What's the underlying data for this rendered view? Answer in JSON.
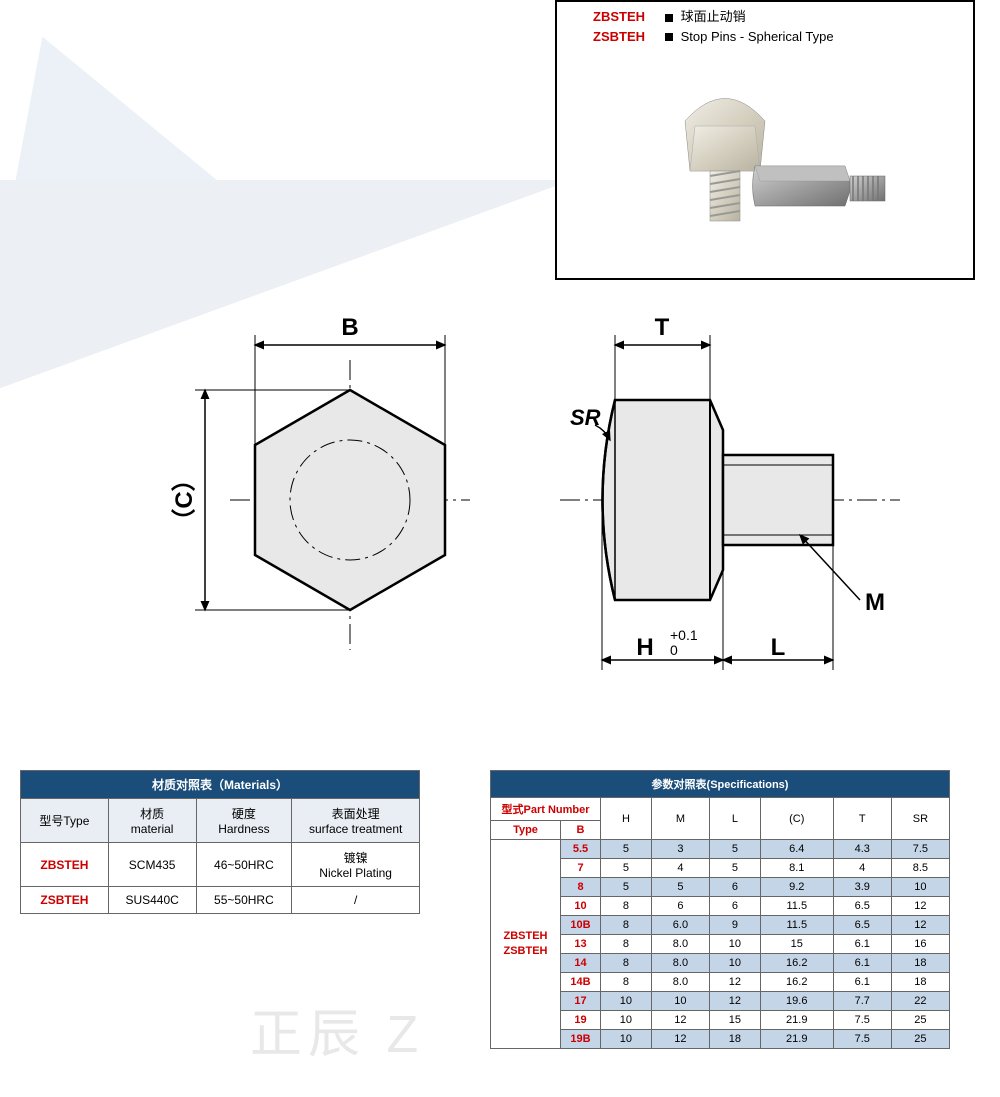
{
  "product": {
    "code1": "ZBSTEH",
    "code2": "ZSBTEH",
    "name_cn": "球面止动销",
    "name_en": "Stop Pins - Spherical Type"
  },
  "diagram": {
    "labels": {
      "B": "B",
      "C": "（C）",
      "T": "T",
      "SR": "SR",
      "M": "M",
      "L": "L",
      "H": "H",
      "H_tol_upper": "+0.1",
      "H_tol_lower": "0"
    },
    "colors": {
      "fill": "#e8e8e8",
      "stroke": "#000000",
      "centerline": "#000000"
    }
  },
  "materials_table": {
    "title": "材质对照表（Materials）",
    "headers": {
      "type": "型号Type",
      "material": "材质\nmaterial",
      "hardness": "硬度\nHardness",
      "surface": "表面处理\nsurface treatment"
    },
    "rows": [
      {
        "type": "ZBSTEH",
        "material": "SCM435",
        "hardness": "46~50HRC",
        "surface": "镀镍\nNickel Plating"
      },
      {
        "type": "ZSBTEH",
        "material": "SUS440C",
        "hardness": "55~50HRC",
        "surface": "/"
      }
    ],
    "colors": {
      "header_bg": "#1a4d7a",
      "header_fg": "#ffffff",
      "sub_bg": "#e8eef4",
      "red": "#cc0000",
      "border": "#666666"
    }
  },
  "spec_table": {
    "title": "参数对照表(Specifications)",
    "part_number_label": "型式Part Number",
    "type_label": "Type",
    "b_label": "B",
    "type_values": "ZBSTEH\nZSBTEH",
    "columns": [
      "H",
      "M",
      "L",
      "(C)",
      "T",
      "SR"
    ],
    "rows": [
      {
        "B": "5.5",
        "H": "5",
        "M": "3",
        "L": "5",
        "C": "6.4",
        "T": "4.3",
        "SR": "7.5",
        "shade": "odd"
      },
      {
        "B": "7",
        "H": "5",
        "M": "4",
        "L": "5",
        "C": "8.1",
        "T": "4",
        "SR": "8.5",
        "shade": "even"
      },
      {
        "B": "8",
        "H": "5",
        "M": "5",
        "L": "6",
        "C": "9.2",
        "T": "3.9",
        "SR": "10",
        "shade": "odd"
      },
      {
        "B": "10",
        "H": "8",
        "M": "6",
        "L": "6",
        "C": "11.5",
        "T": "6.5",
        "SR": "12",
        "shade": "even"
      },
      {
        "B": "10B",
        "H": "8",
        "M": "6.0",
        "L": "9",
        "C": "11.5",
        "T": "6.5",
        "SR": "12",
        "shade": "odd"
      },
      {
        "B": "13",
        "H": "8",
        "M": "8.0",
        "L": "10",
        "C": "15",
        "T": "6.1",
        "SR": "16",
        "shade": "even"
      },
      {
        "B": "14",
        "H": "8",
        "M": "8.0",
        "L": "10",
        "C": "16.2",
        "T": "6.1",
        "SR": "18",
        "shade": "odd"
      },
      {
        "B": "14B",
        "H": "8",
        "M": "8.0",
        "L": "12",
        "C": "16.2",
        "T": "6.1",
        "SR": "18",
        "shade": "even"
      },
      {
        "B": "17",
        "H": "10",
        "M": "10",
        "L": "12",
        "C": "19.6",
        "T": "7.7",
        "SR": "22",
        "shade": "odd"
      },
      {
        "B": "19",
        "H": "10",
        "M": "12",
        "L": "15",
        "C": "21.9",
        "T": "7.5",
        "SR": "25",
        "shade": "even"
      },
      {
        "B": "19B",
        "H": "10",
        "M": "12",
        "L": "18",
        "C": "21.9",
        "T": "7.5",
        "SR": "25",
        "shade": "odd"
      }
    ],
    "colors": {
      "header_bg": "#1a4d7a",
      "header_fg": "#ffffff",
      "odd_bg": "#c5d5e8",
      "even_bg": "#ffffff",
      "red": "#cc0000",
      "border": "#666666"
    }
  },
  "watermark": "正辰 Z"
}
